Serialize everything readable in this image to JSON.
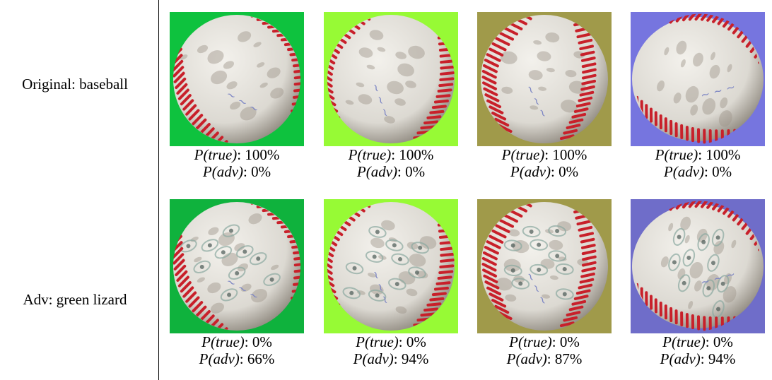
{
  "rows": [
    {
      "label": "Original: baseball",
      "cells": [
        {
          "bg": "#0ec23e",
          "p_true": "100%",
          "p_adv": "0%"
        },
        {
          "bg": "#97fa35",
          "p_true": "100%",
          "p_adv": "0%"
        },
        {
          "bg": "#a09a4a",
          "p_true": "100%",
          "p_adv": "0%"
        },
        {
          "bg": "#7675df",
          "p_true": "100%",
          "p_adv": "0%"
        }
      ]
    },
    {
      "label": "Adv: green lizard",
      "cells": [
        {
          "bg": "#0fb23d",
          "p_true": "0%",
          "p_adv": "66%"
        },
        {
          "bg": "#97fa35",
          "p_true": "0%",
          "p_adv": "94%"
        },
        {
          "bg": "#a09a4a",
          "p_true": "0%",
          "p_adv": "87%"
        },
        {
          "bg": "#6f6dc9",
          "p_true": "0%",
          "p_adv": "94%"
        }
      ]
    }
  ],
  "labels": {
    "p_true_prefix": "P(true)",
    "p_adv_prefix": "P(adv)",
    "sep": ": "
  },
  "colors": {
    "ball_base": "#dcd9d2",
    "stitch": "#c8202a",
    "ink": "#7d86c4"
  },
  "icons": {
    "tile_image": "baseball-photo"
  }
}
